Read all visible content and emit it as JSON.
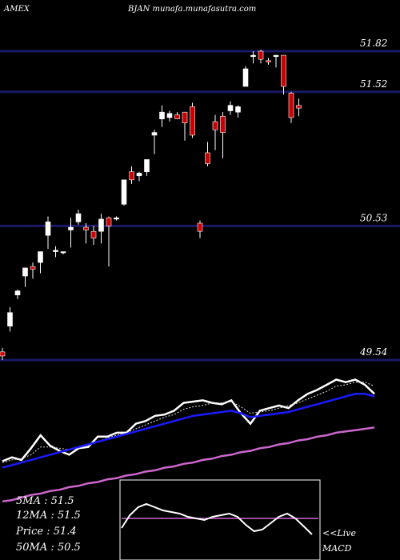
{
  "header": {
    "exchange": "AMEX",
    "title": "BJAN munafa.munafasutra.com"
  },
  "chart_data": [
    {
      "type": "candlestick",
      "price_lines": [
        {
          "label": "51.82",
          "value": 51.82
        },
        {
          "label": "51.52",
          "value": 51.52
        },
        {
          "label": "50.53",
          "value": 50.53
        },
        {
          "label": "49.54",
          "value": 49.54
        }
      ],
      "candles": [
        {
          "o": 49.6,
          "h": 49.63,
          "l": 49.54,
          "c": 49.57
        },
        {
          "o": 49.79,
          "h": 49.93,
          "l": 49.75,
          "c": 49.89
        },
        {
          "o": 50.02,
          "h": 50.06,
          "l": 49.99,
          "c": 50.05
        },
        {
          "o": 50.16,
          "h": 50.22,
          "l": 50.08,
          "c": 50.22
        },
        {
          "o": 50.23,
          "h": 50.26,
          "l": 50.14,
          "c": 50.21
        },
        {
          "o": 50.26,
          "h": 50.34,
          "l": 50.18,
          "c": 50.34
        },
        {
          "o": 50.46,
          "h": 50.6,
          "l": 50.36,
          "c": 50.56
        },
        {
          "o": 50.34,
          "h": 50.38,
          "l": 50.3,
          "c": 50.35
        },
        {
          "o": 50.34,
          "h": 50.34,
          "l": 50.32,
          "c": 50.34
        },
        {
          "o": 50.5,
          "h": 50.59,
          "l": 50.37,
          "c": 50.52
        },
        {
          "o": 50.56,
          "h": 50.65,
          "l": 50.54,
          "c": 50.62
        },
        {
          "o": 50.52,
          "h": 50.55,
          "l": 50.4,
          "c": 50.5
        },
        {
          "o": 50.49,
          "h": 50.53,
          "l": 50.39,
          "c": 50.44
        },
        {
          "o": 50.49,
          "h": 50.62,
          "l": 50.4,
          "c": 50.58
        },
        {
          "o": 50.59,
          "h": 50.6,
          "l": 50.23,
          "c": 50.53
        },
        {
          "o": 50.58,
          "h": 50.6,
          "l": 50.57,
          "c": 50.59
        },
        {
          "o": 50.69,
          "h": 50.87,
          "l": 50.68,
          "c": 50.87
        },
        {
          "o": 50.93,
          "h": 50.97,
          "l": 50.84,
          "c": 50.87
        },
        {
          "o": 50.9,
          "h": 50.93,
          "l": 50.86,
          "c": 50.92
        },
        {
          "o": 50.93,
          "h": 51.02,
          "l": 50.9,
          "c": 51.02
        },
        {
          "o": 51.2,
          "h": 51.24,
          "l": 51.06,
          "c": 51.22
        },
        {
          "o": 51.32,
          "h": 51.42,
          "l": 51.26,
          "c": 51.37
        },
        {
          "o": 51.33,
          "h": 51.38,
          "l": 51.3,
          "c": 51.36
        },
        {
          "o": 51.35,
          "h": 51.37,
          "l": 51.32,
          "c": 51.32
        },
        {
          "o": 51.37,
          "h": 51.37,
          "l": 51.16,
          "c": 51.29
        },
        {
          "o": 51.41,
          "h": 51.44,
          "l": 51.18,
          "c": 51.2
        },
        {
          "o": 50.55,
          "h": 50.57,
          "l": 50.44,
          "c": 50.49
        },
        {
          "o": 51.07,
          "h": 51.15,
          "l": 50.97,
          "c": 50.99
        },
        {
          "o": 51.3,
          "h": 51.35,
          "l": 51.09,
          "c": 51.24
        },
        {
          "o": 51.34,
          "h": 51.37,
          "l": 51.03,
          "c": 51.22
        },
        {
          "o": 51.38,
          "h": 51.45,
          "l": 51.35,
          "c": 51.42
        },
        {
          "o": 51.37,
          "h": 51.42,
          "l": 51.33,
          "c": 51.41
        },
        {
          "o": 51.56,
          "h": 51.71,
          "l": 51.56,
          "c": 51.69
        },
        {
          "o": 51.78,
          "h": 51.82,
          "l": 51.73,
          "c": 51.79
        },
        {
          "o": 51.82,
          "h": 51.83,
          "l": 51.73,
          "c": 51.76
        },
        {
          "o": 51.75,
          "h": 51.77,
          "l": 51.72,
          "c": 51.74
        },
        {
          "o": 51.78,
          "h": 51.79,
          "l": 51.7,
          "c": 51.79
        },
        {
          "o": 51.79,
          "h": 51.79,
          "l": 51.5,
          "c": 51.56
        },
        {
          "o": 51.51,
          "h": 51.52,
          "l": 51.29,
          "c": 51.33
        },
        {
          "o": 51.42,
          "h": 51.47,
          "l": 51.34,
          "c": 51.4
        }
      ],
      "overlays": [
        {
          "color": "#ffffff",
          "values": [
            49.83,
            49.86,
            49.84,
            49.93,
            50.03,
            49.95,
            49.91,
            49.88,
            49.93,
            49.94,
            50.02,
            50.02,
            50.05,
            50.05,
            50.12,
            50.14,
            50.18,
            50.19,
            50.22,
            50.28,
            50.29,
            50.3,
            50.28,
            50.27,
            50.3,
            50.2,
            50.12,
            50.22,
            50.24,
            50.26,
            50.24,
            50.3,
            50.35,
            50.38,
            50.42,
            50.46,
            50.44,
            50.46,
            50.42,
            50.35
          ]
        },
        {
          "color": "#dddddd",
          "dashed": true,
          "values": [
            49.82,
            49.84,
            49.85,
            49.88,
            49.94,
            49.94,
            49.93,
            49.92,
            49.93,
            49.95,
            49.98,
            50.01,
            50.03,
            50.05,
            50.08,
            50.11,
            50.14,
            50.17,
            50.19,
            50.23,
            50.25,
            50.26,
            50.28,
            50.28,
            50.29,
            50.25,
            50.2,
            50.21,
            50.22,
            50.24,
            50.26,
            50.28,
            50.31,
            50.34,
            50.37,
            50.41,
            50.42,
            50.44,
            50.44,
            50.41
          ]
        },
        {
          "color": "#1a1aff",
          "values": [
            49.78,
            49.8,
            49.82,
            49.84,
            49.86,
            49.88,
            49.9,
            49.92,
            49.94,
            49.96,
            49.98,
            50.0,
            50.02,
            50.04,
            50.06,
            50.08,
            50.1,
            50.12,
            50.14,
            50.16,
            50.18,
            50.19,
            50.2,
            50.21,
            50.22,
            50.2,
            50.17,
            50.18,
            50.19,
            50.2,
            50.21,
            50.23,
            50.25,
            50.27,
            50.29,
            50.31,
            50.33,
            50.35,
            50.35,
            50.33
          ]
        },
        {
          "color": "#cc66cc",
          "values": [
            49.52,
            49.53,
            49.55,
            49.57,
            49.58,
            49.6,
            49.61,
            49.63,
            49.64,
            49.66,
            49.67,
            49.69,
            49.7,
            49.72,
            49.73,
            49.75,
            49.76,
            49.78,
            49.79,
            49.81,
            49.82,
            49.84,
            49.85,
            49.87,
            49.88,
            49.9,
            49.91,
            49.93,
            49.94,
            49.96,
            49.97,
            49.99,
            50.0,
            50.02,
            50.03,
            50.05,
            50.06,
            50.07,
            50.08,
            50.09
          ]
        }
      ],
      "colors": {
        "up": "#ffffff",
        "down": "#cc0000",
        "price_line": "#1a1a66"
      }
    },
    {
      "type": "line",
      "title": "MACD",
      "values": [
        0.2,
        0.28,
        0.33,
        0.35,
        0.33,
        0.31,
        0.3,
        0.29,
        0.27,
        0.26,
        0.25,
        0.27,
        0.28,
        0.29,
        0.27,
        0.22,
        0.18,
        0.19,
        0.23,
        0.27,
        0.29,
        0.26,
        0.21,
        0.16
      ],
      "signal_value": 0.26,
      "colors": {
        "line": "#ffffff",
        "signal": "#cc66cc",
        "frame": "#ffffff"
      }
    }
  ],
  "legend": {
    "ma5": "5MA : 51.5",
    "ma12": "12MA : 51.5",
    "price": "Price : 51.4",
    "ma50": "50MA : 50.5",
    "live": "<<Live",
    "macd": "MACD"
  }
}
